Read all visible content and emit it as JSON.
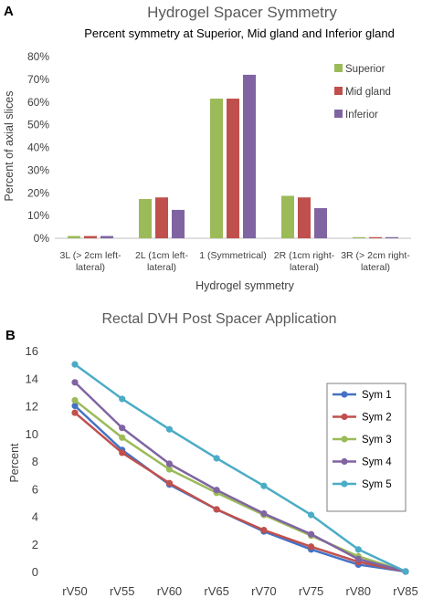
{
  "chart_data": [
    {
      "panel": "A",
      "type": "bar",
      "title": "Hydrogel Spacer Symmetry",
      "subtitle": "Percent symmetry at Superior, Mid gland and Inferior gland",
      "xlabel": "Hydrogel symmetry",
      "ylabel": "Percent of axial slices",
      "ylim": [
        0,
        80
      ],
      "yticks": [
        "0%",
        "10%",
        "20%",
        "30%",
        "40%",
        "50%",
        "60%",
        "70%",
        "80%"
      ],
      "grid": false,
      "legend_position": "top-right",
      "categories": [
        [
          "3L (> 2cm left-",
          "lateral)"
        ],
        [
          "2L (1cm left-",
          "lateral)"
        ],
        [
          "1 (Symmetrical)"
        ],
        [
          "2R (1cm right-",
          "lateral)"
        ],
        [
          "3R (> 2cm right-",
          "lateral)"
        ]
      ],
      "series": [
        {
          "name": "Superior",
          "color": "#9bbb59",
          "values": [
            1,
            17.3,
            61.5,
            18.7,
            0.5
          ]
        },
        {
          "name": "Mid gland",
          "color": "#c0504d",
          "values": [
            1,
            18,
            61.5,
            18,
            0.5
          ]
        },
        {
          "name": "Inferior",
          "color": "#8064a2",
          "values": [
            1,
            12.5,
            72,
            13.3,
            0.5
          ]
        }
      ]
    },
    {
      "panel": "B",
      "type": "line",
      "title": "Rectal DVH Post Spacer Application",
      "xlabel": "",
      "ylabel": "Percent",
      "ylim": [
        0,
        16
      ],
      "yticks": [
        "0",
        "2",
        "4",
        "6",
        "8",
        "10",
        "12",
        "14",
        "16"
      ],
      "grid": false,
      "legend_position": "top-right",
      "x": [
        "rV50",
        "rV55",
        "rV60",
        "rV65",
        "rV70",
        "rV75",
        "rV80",
        "rV85"
      ],
      "series": [
        {
          "name": "Sym 1",
          "color": "#4472c4",
          "values": [
            12.0,
            8.8,
            6.3,
            4.5,
            2.9,
            1.6,
            0.5,
            0
          ]
        },
        {
          "name": "Sym 2",
          "color": "#c0504d",
          "values": [
            11.5,
            8.6,
            6.4,
            4.5,
            3.0,
            1.8,
            0.7,
            0
          ]
        },
        {
          "name": "Sym 3",
          "color": "#9bbb59",
          "values": [
            12.4,
            9.7,
            7.4,
            5.7,
            4.1,
            2.6,
            1.1,
            0
          ]
        },
        {
          "name": "Sym 4",
          "color": "#8064a2",
          "values": [
            13.7,
            10.4,
            7.8,
            5.9,
            4.2,
            2.7,
            0.9,
            0
          ]
        },
        {
          "name": "Sym 5",
          "color": "#4bacc6",
          "values": [
            15.0,
            12.5,
            10.3,
            8.2,
            6.2,
            4.1,
            1.6,
            0
          ]
        }
      ]
    }
  ]
}
